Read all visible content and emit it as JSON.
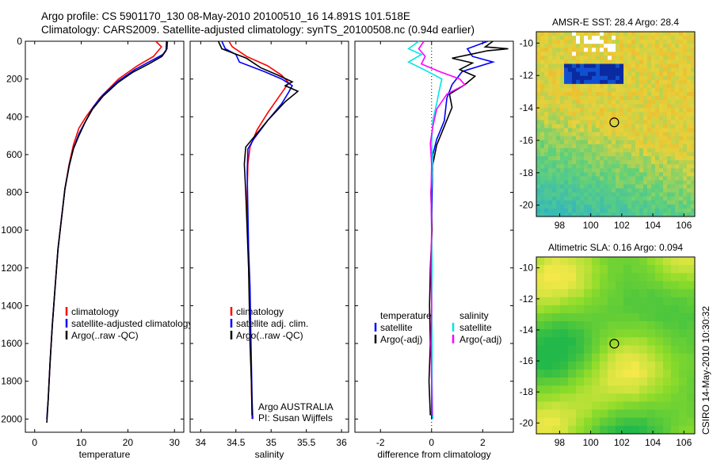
{
  "header": {
    "line1": "Argo profile: CS 5901170_130 08-May-2010 20100510_16 14.891S 101.518E",
    "line2": "Climatology: CARS2009. Satellite-adjusted climatology: synTS_20100508.nc (0.94d earlier)"
  },
  "credit": "CSIRO 14-May-2010 10:30:32",
  "chart_data": [
    {
      "id": "temperature",
      "type": "line",
      "xlabel": "temperature",
      "ylabel": "",
      "xlim": [
        -2,
        32
      ],
      "ylim": [
        2070,
        0
      ],
      "xticks": [
        0,
        10,
        20,
        30
      ],
      "yticks": [
        0,
        200,
        400,
        600,
        800,
        1000,
        1200,
        1400,
        1600,
        1800,
        2000
      ],
      "legend": {
        "placement": "lower-right",
        "entries": [
          {
            "label": "climatology",
            "color": "#ff0000"
          },
          {
            "label": "satellite-adjusted climatology",
            "color": "#0000ff"
          },
          {
            "label": "Argo(..raw -QC)",
            "color": "#000000"
          }
        ]
      },
      "series": [
        {
          "color": "#ff0000",
          "points": [
            [
              26,
              0
            ],
            [
              27.2,
              30
            ],
            [
              25.5,
              80
            ],
            [
              22,
              130
            ],
            [
              18,
              200
            ],
            [
              14,
              300
            ],
            [
              11,
              400
            ],
            [
              9.5,
              460
            ],
            [
              8.3,
              550
            ],
            [
              7.4,
              650
            ],
            [
              6.5,
              780
            ],
            [
              5.7,
              950
            ],
            [
              5,
              1100
            ],
            [
              4.4,
              1300
            ],
            [
              3.8,
              1500
            ],
            [
              3.3,
              1700
            ],
            [
              2.9,
              1900
            ],
            [
              2.6,
              2000
            ]
          ]
        },
        {
          "color": "#0000ff",
          "points": [
            [
              28.5,
              0
            ],
            [
              28.4,
              40
            ],
            [
              27.5,
              70
            ],
            [
              24.5,
              110
            ],
            [
              21.5,
              150
            ],
            [
              18,
              210
            ],
            [
              14.8,
              280
            ],
            [
              12.5,
              350
            ],
            [
              11,
              420
            ],
            [
              9.5,
              490
            ],
            [
              8.3,
              570
            ],
            [
              7.4,
              660
            ],
            [
              6.5,
              780
            ],
            [
              5.7,
              950
            ],
            [
              5,
              1100
            ],
            [
              4.4,
              1300
            ],
            [
              3.8,
              1500
            ],
            [
              3.3,
              1700
            ],
            [
              2.9,
              1900
            ],
            [
              2.6,
              2000
            ]
          ]
        },
        {
          "color": "#000000",
          "points": [
            [
              28.3,
              0
            ],
            [
              28.2,
              50
            ],
            [
              27.3,
              80
            ],
            [
              24.5,
              120
            ],
            [
              21,
              165
            ],
            [
              17.8,
              220
            ],
            [
              14.7,
              290
            ],
            [
              12.4,
              360
            ],
            [
              10.8,
              430
            ],
            [
              9.5,
              500
            ],
            [
              8.3,
              570
            ],
            [
              7.4,
              660
            ],
            [
              6.5,
              780
            ],
            [
              5.7,
              950
            ],
            [
              5,
              1100
            ],
            [
              4.4,
              1300
            ],
            [
              3.8,
              1500
            ],
            [
              3.3,
              1700
            ],
            [
              2.9,
              1900
            ],
            [
              2.6,
              2020
            ]
          ]
        }
      ]
    },
    {
      "id": "salinity",
      "type": "line",
      "xlabel": "salinity",
      "ylabel": "",
      "xlim": [
        33.85,
        36.1
      ],
      "ylim": [
        2070,
        0
      ],
      "xticks": [
        34,
        34.5,
        35,
        35.5,
        36
      ],
      "legend": {
        "placement": "lower-right",
        "entries": [
          {
            "label": "climatology",
            "color": "#ff0000"
          },
          {
            "label": "satellite adj. clim.",
            "color": "#0000ff"
          },
          {
            "label": "Argo(..raw -QC)",
            "color": "#000000"
          }
        ]
      },
      "annotation": [
        "Argo AUSTRALIA",
        "PI: Susan Wijffels"
      ],
      "series": [
        {
          "color": "#ff0000",
          "points": [
            [
              34.4,
              0
            ],
            [
              34.45,
              30
            ],
            [
              34.65,
              80
            ],
            [
              34.95,
              130
            ],
            [
              35.15,
              180
            ],
            [
              35.25,
              220
            ],
            [
              35.1,
              300
            ],
            [
              34.95,
              380
            ],
            [
              34.8,
              470
            ],
            [
              34.7,
              560
            ],
            [
              34.67,
              650
            ],
            [
              34.66,
              800
            ],
            [
              34.67,
              1000
            ],
            [
              34.68,
              1200
            ],
            [
              34.7,
              1400
            ],
            [
              34.71,
              1600
            ],
            [
              34.72,
              1800
            ],
            [
              34.73,
              2000
            ]
          ]
        },
        {
          "color": "#0000ff",
          "points": [
            [
              34.3,
              0
            ],
            [
              34.35,
              40
            ],
            [
              34.5,
              70
            ],
            [
              34.55,
              110
            ],
            [
              34.9,
              160
            ],
            [
              35.15,
              200
            ],
            [
              35.3,
              235
            ],
            [
              35.25,
              270
            ],
            [
              35.15,
              330
            ],
            [
              34.95,
              420
            ],
            [
              34.75,
              520
            ],
            [
              34.67,
              570
            ],
            [
              34.66,
              700
            ],
            [
              34.67,
              900
            ],
            [
              34.68,
              1100
            ],
            [
              34.7,
              1300
            ],
            [
              34.71,
              1500
            ],
            [
              34.72,
              1700
            ],
            [
              34.73,
              1900
            ],
            [
              34.74,
              2000
            ]
          ]
        },
        {
          "color": "#000000",
          "points": [
            [
              34.25,
              0
            ],
            [
              34.3,
              40
            ],
            [
              34.65,
              90
            ],
            [
              34.85,
              140
            ],
            [
              35.1,
              180
            ],
            [
              35.3,
              215
            ],
            [
              35.2,
              235
            ],
            [
              35.38,
              265
            ],
            [
              35.2,
              320
            ],
            [
              34.95,
              420
            ],
            [
              34.75,
              510
            ],
            [
              34.64,
              560
            ],
            [
              34.62,
              650
            ],
            [
              34.64,
              800
            ],
            [
              34.66,
              1000
            ],
            [
              34.68,
              1200
            ],
            [
              34.69,
              1400
            ],
            [
              34.7,
              1600
            ],
            [
              34.72,
              1800
            ],
            [
              34.73,
              1980
            ]
          ]
        }
      ]
    },
    {
      "id": "difference",
      "type": "line",
      "xlabel": "difference from climatology",
      "ylabel": "",
      "xlim": [
        -3,
        3.2
      ],
      "ylim": [
        2070,
        0
      ],
      "xticks": [
        -2,
        0,
        2
      ],
      "zero_line": true,
      "legend": {
        "placement": "lower-right",
        "temperature_title": "temperature",
        "salinity_title": "salinity",
        "temperature_entries": [
          {
            "label": "satellite",
            "color": "#0000ff"
          },
          {
            "label": "Argo(-adj)",
            "color": "#000000"
          }
        ],
        "salinity_entries": [
          {
            "label": "satellite",
            "color": "#00e5e5"
          },
          {
            "label": "Argo(-adj)",
            "color": "#ff00ff"
          }
        ]
      },
      "series": [
        {
          "name": "temperature satellite",
          "color": "#0000ff",
          "points": [
            [
              2.2,
              0
            ],
            [
              1.4,
              40
            ],
            [
              1.6,
              80
            ],
            [
              2.4,
              110
            ],
            [
              1.2,
              160
            ],
            [
              0.8,
              230
            ],
            [
              0.6,
              300
            ],
            [
              0.5,
              420
            ],
            [
              0.2,
              520
            ],
            [
              0.05,
              600
            ],
            [
              0.02,
              800
            ],
            [
              0,
              1000
            ],
            [
              0,
              1200
            ],
            [
              0,
              1400
            ],
            [
              0,
              1600
            ],
            [
              0,
              1800
            ],
            [
              0,
              2000
            ]
          ]
        },
        {
          "name": "temperature Argo(-adj)",
          "color": "#000000",
          "points": [
            [
              2.4,
              0
            ],
            [
              2.1,
              30
            ],
            [
              3,
              40
            ],
            [
              2.2,
              50
            ],
            [
              1.5,
              70
            ],
            [
              0.8,
              90
            ],
            [
              1.6,
              115
            ],
            [
              1.1,
              150
            ],
            [
              1.7,
              185
            ],
            [
              1.3,
              230
            ],
            [
              0.7,
              280
            ],
            [
              0.8,
              350
            ],
            [
              0.5,
              450
            ],
            [
              0.2,
              550
            ],
            [
              0.05,
              650
            ],
            [
              -0.03,
              800
            ],
            [
              0.02,
              1000
            ],
            [
              -0.05,
              1200
            ],
            [
              -0.08,
              1400
            ],
            [
              -0.05,
              1600
            ],
            [
              -0.1,
              1800
            ],
            [
              -0.05,
              1980
            ]
          ]
        },
        {
          "name": "salinity satellite",
          "color": "#00e5e5",
          "points": [
            [
              -0.5,
              0
            ],
            [
              -0.9,
              40
            ],
            [
              -0.4,
              70
            ],
            [
              -0.9,
              110
            ],
            [
              -0.3,
              150
            ],
            [
              0.4,
              200
            ],
            [
              0.3,
              260
            ],
            [
              0.2,
              330
            ],
            [
              0.05,
              420
            ],
            [
              0,
              540
            ],
            [
              0.05,
              650
            ],
            [
              -0.02,
              800
            ],
            [
              0,
              1000
            ],
            [
              0.02,
              1200
            ],
            [
              0,
              1400
            ],
            [
              0.02,
              1600
            ],
            [
              0.02,
              1800
            ],
            [
              0.05,
              2000
            ]
          ]
        },
        {
          "name": "salinity Argo(-adj)",
          "color": "#ff00ff",
          "points": [
            [
              -0.3,
              0
            ],
            [
              -0.5,
              40
            ],
            [
              -0.25,
              80
            ],
            [
              -0.4,
              120
            ],
            [
              0.3,
              160
            ],
            [
              1.1,
              200
            ],
            [
              1.3,
              230
            ],
            [
              0.6,
              280
            ],
            [
              0.2,
              360
            ],
            [
              0.05,
              450
            ],
            [
              -0.05,
              540
            ],
            [
              0,
              650
            ],
            [
              -0.02,
              800
            ],
            [
              0,
              1000
            ],
            [
              -0.02,
              1200
            ],
            [
              0,
              1400
            ],
            [
              -0.02,
              1600
            ],
            [
              0,
              1800
            ],
            [
              0.02,
              1980
            ]
          ]
        }
      ]
    },
    {
      "id": "sst-map",
      "type": "heatmap",
      "title": "AMSR-E SST: 28.4 Argo: 28.4",
      "xlim": [
        96.5,
        106.7
      ],
      "ylim": [
        -20.7,
        -9.3
      ],
      "xticks": [
        98,
        100,
        102,
        104,
        106
      ],
      "yticks": [
        -10,
        -12,
        -14,
        -16,
        -18,
        -20
      ],
      "marker": {
        "lon": 101.518,
        "lat": -14.891
      },
      "colors": {
        "cold": "#1aa8e6",
        "mid": "#5fd07a",
        "warm": "#e8d23a",
        "hot": "#f08a18"
      }
    },
    {
      "id": "sla-map",
      "type": "heatmap",
      "title": "Altimetric SLA: 0.16 Argo: 0.094",
      "xlim": [
        96.5,
        106.7
      ],
      "ylim": [
        -20.7,
        -9.3
      ],
      "xticks": [
        98,
        100,
        102,
        104,
        106
      ],
      "yticks": [
        -10,
        -12,
        -14,
        -16,
        -18,
        -20
      ],
      "marker": {
        "lon": 101.518,
        "lat": -14.891
      },
      "colors": {
        "low": "#22b84a",
        "mid": "#8fdc2a",
        "high": "#f4e84a"
      }
    }
  ]
}
